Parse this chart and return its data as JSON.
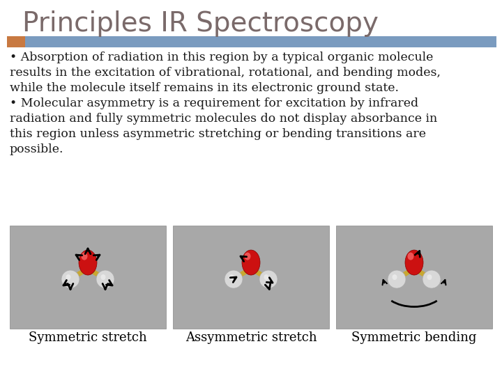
{
  "title": "Principles IR Spectroscopy",
  "title_color": "#7a6a6a",
  "title_fontsize": 28,
  "bg_color": "#ffffff",
  "header_bar_color": "#7a9bbf",
  "header_bar_left_color": "#c87941",
  "bullet_text_1": "• Absorption of radiation in this region by a typical organic molecule results in the excitation of vibrational, rotational, and bending modes, while the molecule itself remains in its electronic ground state.",
  "bullet_text_2": "• Molecular asymmetry is a requirement for excitation by infrared radiation and fully symmetric molecules do not display absorbance in this region unless asymmetric stretching or bending transitions are possible.",
  "body_text_color": "#1a1a1a",
  "body_fontsize": 12.5,
  "caption1": "Symmetric stretch",
  "caption2": "Assymmetric stretch",
  "caption3": "Symmetric bending",
  "caption_fontsize": 13,
  "image_bg_color": "#a8a8a8"
}
